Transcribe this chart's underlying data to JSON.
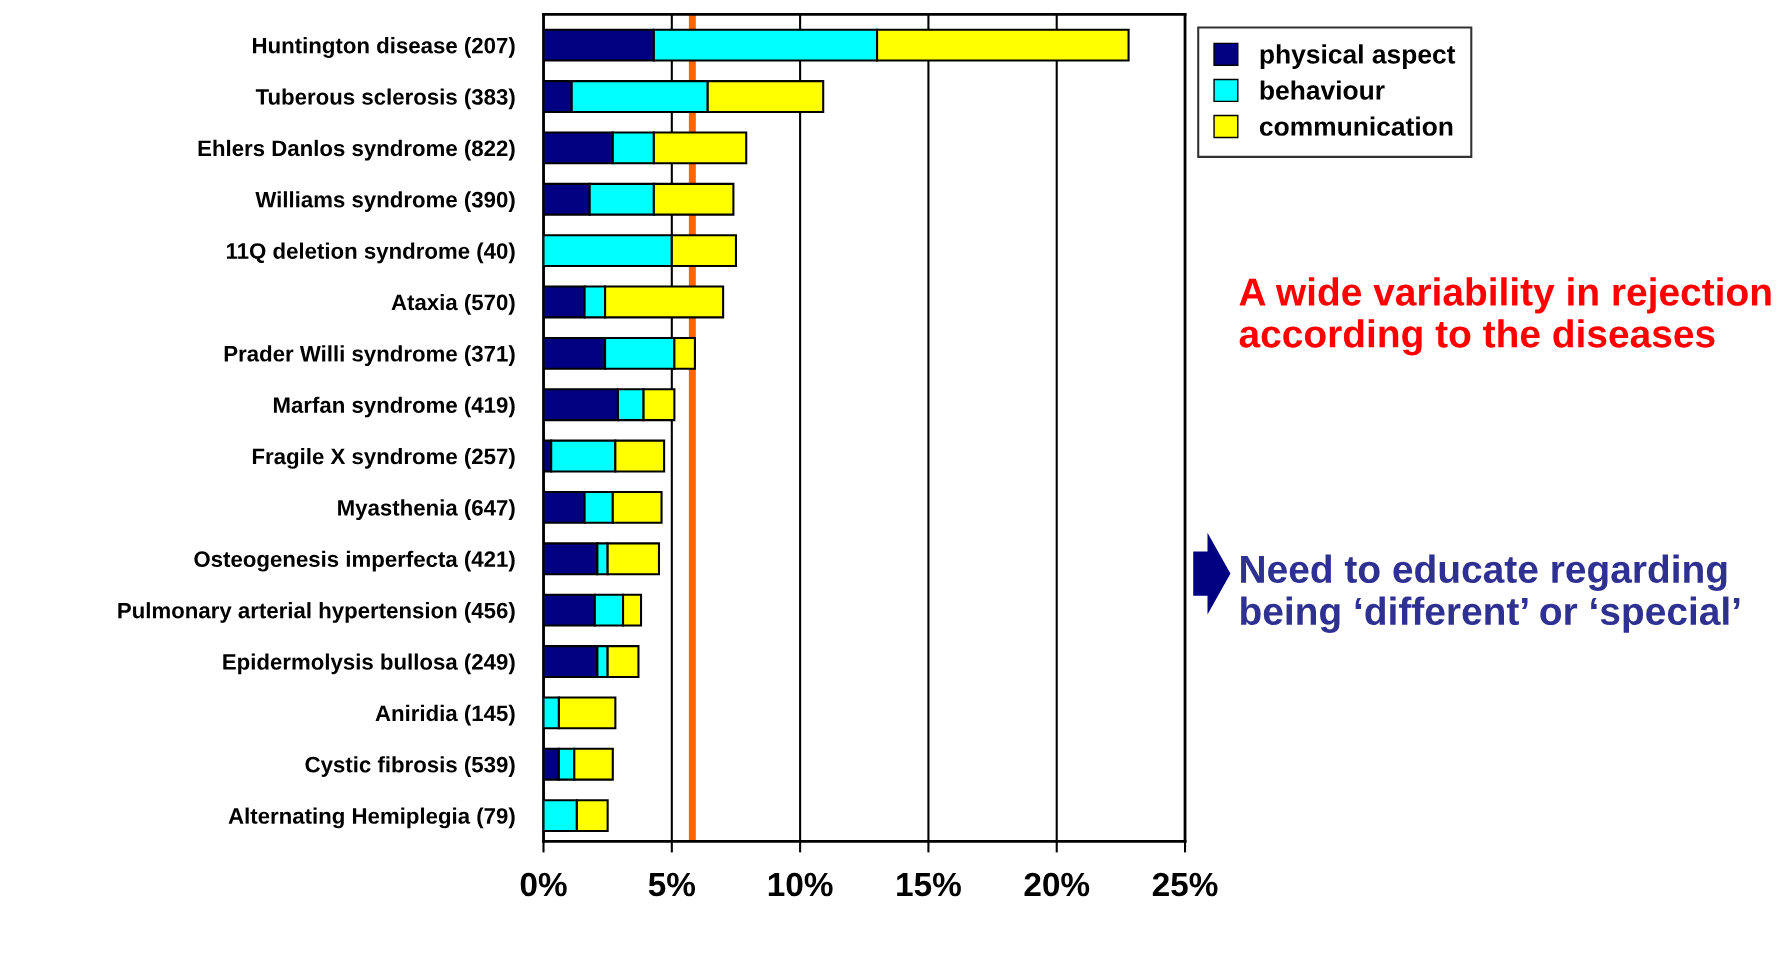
{
  "chart_data": {
    "type": "bar",
    "orientation": "horizontal",
    "stacked": true,
    "categories": [
      "Huntington disease (207)",
      "Tuberous sclerosis (383)",
      "Ehlers Danlos syndrome (822)",
      "Williams syndrome (390)",
      "11Q deletion syndrome (40)",
      "Ataxia (570)",
      "Prader Willi syndrome (371)",
      "Marfan syndrome (419)",
      "Fragile X syndrome (257)",
      "Myasthenia (647)",
      "Osteogenesis imperfecta (421)",
      "Pulmonary arterial hypertension (456)",
      "Epidermolysis bullosa (249)",
      "Aniridia (145)",
      "Cystic fibrosis (539)",
      "Alternating Hemiplegia (79)"
    ],
    "series": [
      {
        "name": "physical aspect",
        "color": "#000080",
        "values": [
          4.3,
          1.1,
          2.7,
          1.8,
          0,
          1.6,
          2.4,
          2.9,
          0.3,
          1.6,
          2.1,
          2.0,
          2.1,
          0,
          0.6,
          0
        ]
      },
      {
        "name": "behaviour",
        "color": "#00ffff",
        "values": [
          8.7,
          5.3,
          1.6,
          2.5,
          5.0,
          0.8,
          2.7,
          1.0,
          2.5,
          1.1,
          0.4,
          1.1,
          0.4,
          0.6,
          0.6,
          1.3
        ]
      },
      {
        "name": "communication",
        "color": "#ffff00",
        "values": [
          9.8,
          4.5,
          3.6,
          3.1,
          2.5,
          4.6,
          0.8,
          1.2,
          1.9,
          1.9,
          2.0,
          0.7,
          1.2,
          2.2,
          1.5,
          1.2
        ]
      }
    ],
    "xlim": [
      0,
      25
    ],
    "xticks": [
      {
        "value": 0,
        "label": "0%"
      },
      {
        "value": 5,
        "label": "5%"
      },
      {
        "value": 10,
        "label": "10%"
      },
      {
        "value": 15,
        "label": "15%"
      },
      {
        "value": 20,
        "label": "20%"
      },
      {
        "value": 25,
        "label": "25%"
      }
    ],
    "ref_lines": [
      {
        "axis": "x",
        "value": 5.8,
        "color": "#ff6600"
      }
    ],
    "grid": "x",
    "legend": "top right",
    "annotations": [
      "A wide variability in rejection according to the diseases",
      "Need to educate regarding being ‘different’ or ‘special’"
    ]
  }
}
